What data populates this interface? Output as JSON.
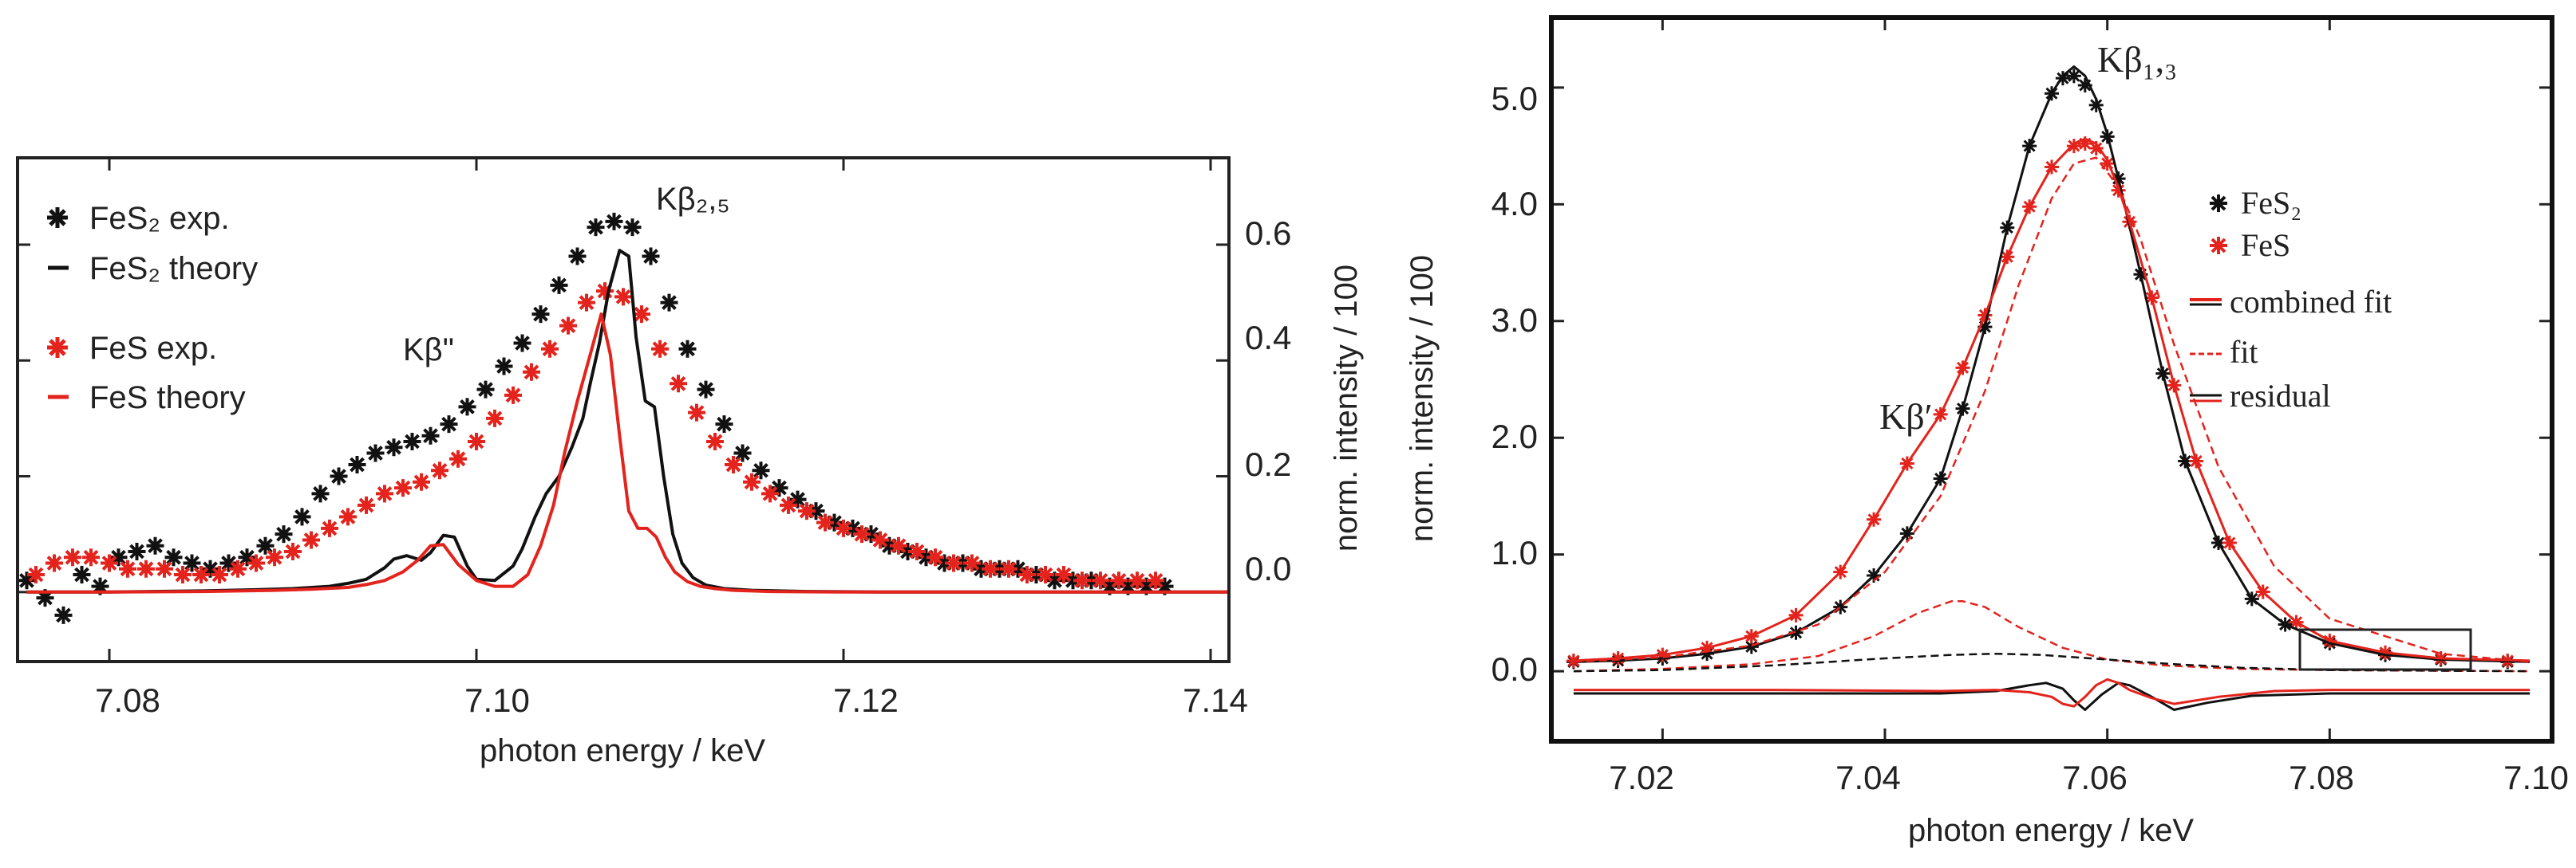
{
  "chart_data": [
    {
      "id": "left",
      "type": "scatter",
      "title": "",
      "xlabel": "photon energy / keV",
      "ylabel": "norm. intensity / 100",
      "xlim": [
        7.075,
        7.141
      ],
      "ylim": [
        -0.12,
        0.75
      ],
      "xticks": [
        7.08,
        7.1,
        7.12,
        7.14
      ],
      "xtick_labels": [
        "7.08",
        "7.10",
        "7.12",
        "7.14"
      ],
      "yticks": [
        0.0,
        0.2,
        0.4,
        0.6
      ],
      "ytick_labels": [
        "0.0",
        "0.2",
        "0.4",
        "0.6"
      ],
      "y_axis_side": "right",
      "legend_position": "top-left",
      "legend": [
        "FeS₂ exp.",
        "FeS₂ theory",
        "FeS exp.",
        "FeS theory"
      ],
      "annotations": [
        {
          "text": "Kβ\"",
          "x": 7.0965,
          "y": 0.42
        },
        {
          "text": "Kβ₂,₅",
          "x": 7.1113,
          "y": 0.69
        }
      ],
      "series": [
        {
          "name": "FeS₂ exp.",
          "style": "markers",
          "color": "#111111",
          "x": [
            7.0755,
            7.0765,
            7.0775,
            7.0785,
            7.0795,
            7.0805,
            7.0815,
            7.0825,
            7.0835,
            7.0845,
            7.0855,
            7.0865,
            7.0875,
            7.0885,
            7.0895,
            7.0905,
            7.0915,
            7.0925,
            7.0935,
            7.0945,
            7.0955,
            7.0965,
            7.0975,
            7.0985,
            7.0995,
            7.1005,
            7.1015,
            7.1025,
            7.1035,
            7.1045,
            7.1055,
            7.1065,
            7.1075,
            7.1085,
            7.1095,
            7.1105,
            7.1115,
            7.1125,
            7.1135,
            7.1145,
            7.1155,
            7.1165,
            7.1175,
            7.1185,
            7.1195,
            7.1205,
            7.1215,
            7.1225,
            7.1235,
            7.1245,
            7.1255,
            7.1265,
            7.1275,
            7.1285,
            7.1295,
            7.1305,
            7.1315,
            7.1325,
            7.1335,
            7.1345,
            7.1355,
            7.1365,
            7.1375
          ],
          "y": [
            0.02,
            -0.01,
            -0.04,
            0.03,
            0.01,
            0.06,
            0.07,
            0.08,
            0.06,
            0.05,
            0.04,
            0.05,
            0.06,
            0.08,
            0.1,
            0.13,
            0.17,
            0.2,
            0.22,
            0.24,
            0.25,
            0.26,
            0.27,
            0.29,
            0.32,
            0.35,
            0.39,
            0.43,
            0.48,
            0.53,
            0.58,
            0.63,
            0.64,
            0.63,
            0.58,
            0.5,
            0.42,
            0.35,
            0.29,
            0.24,
            0.21,
            0.18,
            0.16,
            0.14,
            0.12,
            0.11,
            0.1,
            0.08,
            0.07,
            0.06,
            0.05,
            0.05,
            0.04,
            0.04,
            0.04,
            0.03,
            0.02,
            0.02,
            0.02,
            0.01,
            0.01,
            0.01,
            0.01
          ]
        },
        {
          "name": "FeS exp.",
          "style": "markers",
          "color": "#e3231c",
          "x": [
            7.076,
            7.077,
            7.078,
            7.079,
            7.08,
            7.081,
            7.082,
            7.083,
            7.084,
            7.085,
            7.086,
            7.087,
            7.088,
            7.089,
            7.09,
            7.091,
            7.092,
            7.093,
            7.094,
            7.095,
            7.096,
            7.097,
            7.098,
            7.099,
            7.1,
            7.101,
            7.102,
            7.103,
            7.104,
            7.105,
            7.106,
            7.107,
            7.108,
            7.109,
            7.11,
            7.111,
            7.112,
            7.113,
            7.114,
            7.115,
            7.116,
            7.117,
            7.118,
            7.119,
            7.12,
            7.121,
            7.122,
            7.123,
            7.124,
            7.125,
            7.126,
            7.127,
            7.128,
            7.129,
            7.13,
            7.131,
            7.132,
            7.133,
            7.134,
            7.135,
            7.136,
            7.137
          ],
          "y": [
            0.03,
            0.05,
            0.06,
            0.06,
            0.05,
            0.04,
            0.04,
            0.04,
            0.03,
            0.03,
            0.03,
            0.04,
            0.05,
            0.06,
            0.07,
            0.09,
            0.11,
            0.13,
            0.15,
            0.17,
            0.18,
            0.19,
            0.21,
            0.23,
            0.26,
            0.3,
            0.34,
            0.38,
            0.42,
            0.46,
            0.5,
            0.52,
            0.51,
            0.48,
            0.42,
            0.36,
            0.31,
            0.26,
            0.22,
            0.19,
            0.17,
            0.15,
            0.14,
            0.12,
            0.11,
            0.1,
            0.09,
            0.08,
            0.07,
            0.06,
            0.05,
            0.05,
            0.04,
            0.04,
            0.03,
            0.03,
            0.03,
            0.02,
            0.02,
            0.02,
            0.02,
            0.02
          ]
        },
        {
          "name": "FeS₂ theory",
          "style": "line",
          "color": "#111111",
          "x": [
            7.0755,
            7.08,
            7.085,
            7.088,
            7.09,
            7.092,
            7.093,
            7.094,
            7.095,
            7.0955,
            7.0962,
            7.097,
            7.0975,
            7.0982,
            7.0988,
            7.0995,
            7.1,
            7.101,
            7.102,
            7.1025,
            7.1032,
            7.1038,
            7.1045,
            7.1052,
            7.1058,
            7.1062,
            7.1067,
            7.1072,
            7.1078,
            7.1083,
            7.1087,
            7.1092,
            7.1097,
            7.1102,
            7.1107,
            7.1112,
            7.1118,
            7.1125,
            7.1135,
            7.115,
            7.118,
            7.122,
            7.128,
            7.135,
            7.141
          ],
          "y": [
            0.0,
            0.0,
            0.002,
            0.004,
            0.006,
            0.01,
            0.015,
            0.022,
            0.042,
            0.057,
            0.063,
            0.055,
            0.068,
            0.098,
            0.095,
            0.045,
            0.022,
            0.02,
            0.045,
            0.075,
            0.13,
            0.17,
            0.2,
            0.25,
            0.3,
            0.36,
            0.43,
            0.52,
            0.59,
            0.58,
            0.44,
            0.33,
            0.32,
            0.2,
            0.1,
            0.05,
            0.025,
            0.012,
            0.006,
            0.003,
            0.001,
            0.0,
            0.0,
            0.0,
            0.0
          ]
        },
        {
          "name": "FeS theory",
          "style": "line",
          "color": "#e3231c",
          "x": [
            7.0755,
            7.08,
            7.085,
            7.089,
            7.091,
            7.093,
            7.094,
            7.095,
            7.096,
            7.0968,
            7.0975,
            7.0982,
            7.099,
            7.1,
            7.101,
            7.102,
            7.1028,
            7.1035,
            7.1042,
            7.1048,
            7.1055,
            7.1062,
            7.1068,
            7.1073,
            7.1078,
            7.1083,
            7.1088,
            7.1093,
            7.1098,
            7.1103,
            7.1108,
            7.1115,
            7.1122,
            7.113,
            7.114,
            7.116,
            7.12,
            7.125,
            7.13,
            7.141
          ],
          "y": [
            0.0,
            0.0,
            0.001,
            0.003,
            0.005,
            0.008,
            0.013,
            0.02,
            0.035,
            0.055,
            0.08,
            0.082,
            0.048,
            0.02,
            0.01,
            0.01,
            0.03,
            0.08,
            0.15,
            0.24,
            0.33,
            0.41,
            0.48,
            0.41,
            0.27,
            0.14,
            0.11,
            0.11,
            0.095,
            0.06,
            0.035,
            0.018,
            0.01,
            0.006,
            0.003,
            0.001,
            0.0,
            0.0,
            0.0,
            0.0
          ]
        }
      ]
    },
    {
      "id": "right",
      "type": "scatter",
      "title": "",
      "xlabel": "photon energy / keV",
      "ylabel": "norm. intensity / 100",
      "xlim": [
        7.01,
        7.1
      ],
      "ylim": [
        -0.6,
        5.6
      ],
      "xticks": [
        7.02,
        7.04,
        7.06,
        7.08,
        7.1
      ],
      "xtick_labels": [
        "7.02",
        "7.04",
        "7.06",
        "7.08",
        "7.10"
      ],
      "yticks": [
        0.0,
        1.0,
        2.0,
        3.0,
        4.0,
        5.0
      ],
      "ytick_labels": [
        "0.0",
        "1.0",
        "2.0",
        "3.0",
        "4.0",
        "5.0"
      ],
      "y_axis_side": "left",
      "legend_position": "right",
      "legend": [
        "FeS₂",
        "FeS",
        "combined fit",
        "fit",
        "residual"
      ],
      "annotations": [
        {
          "text": "Kβ₁,₃",
          "x": 7.0615,
          "y": 5.25
        },
        {
          "text": "Kβ′",
          "x": 7.036,
          "y": 2.05
        }
      ],
      "series": [
        {
          "name": "FeS₂",
          "style": "markers",
          "color": "#111111",
          "x": [
            7.012,
            7.016,
            7.02,
            7.024,
            7.028,
            7.032,
            7.036,
            7.039,
            7.042,
            7.045,
            7.047,
            7.049,
            7.051,
            7.053,
            7.055,
            7.056,
            7.057,
            7.058,
            7.059,
            7.06,
            7.061,
            7.063,
            7.065,
            7.067,
            7.07,
            7.073,
            7.076,
            7.08,
            7.085,
            7.09,
            7.096
          ],
          "y": [
            0.08,
            0.09,
            0.11,
            0.15,
            0.21,
            0.33,
            0.55,
            0.82,
            1.18,
            1.65,
            2.25,
            2.95,
            3.8,
            4.5,
            4.95,
            5.08,
            5.1,
            5.02,
            4.85,
            4.58,
            4.22,
            3.4,
            2.55,
            1.8,
            1.1,
            0.62,
            0.4,
            0.24,
            0.14,
            0.1,
            0.08
          ]
        },
        {
          "name": "FeS",
          "style": "markers",
          "color": "#e3231c",
          "x": [
            7.012,
            7.016,
            7.02,
            7.024,
            7.028,
            7.032,
            7.036,
            7.039,
            7.042,
            7.045,
            7.047,
            7.049,
            7.051,
            7.053,
            7.055,
            7.057,
            7.058,
            7.059,
            7.06,
            7.061,
            7.062,
            7.064,
            7.066,
            7.068,
            7.071,
            7.074,
            7.077,
            7.08,
            7.085,
            7.09,
            7.096
          ],
          "y": [
            0.09,
            0.11,
            0.14,
            0.2,
            0.3,
            0.48,
            0.85,
            1.3,
            1.78,
            2.2,
            2.6,
            3.05,
            3.55,
            3.98,
            4.32,
            4.5,
            4.52,
            4.48,
            4.35,
            4.12,
            3.85,
            3.2,
            2.45,
            1.8,
            1.1,
            0.68,
            0.42,
            0.26,
            0.16,
            0.11,
            0.09
          ]
        },
        {
          "name": "FeS₂ combined fit",
          "style": "line",
          "color": "#111111",
          "x": [
            7.012,
            7.016,
            7.02,
            7.024,
            7.028,
            7.032,
            7.036,
            7.039,
            7.042,
            7.045,
            7.047,
            7.049,
            7.051,
            7.053,
            7.055,
            7.056,
            7.057,
            7.058,
            7.059,
            7.06,
            7.061,
            7.063,
            7.065,
            7.067,
            7.07,
            7.073,
            7.076,
            7.08,
            7.085,
            7.09,
            7.098
          ],
          "y": [
            0.08,
            0.09,
            0.11,
            0.15,
            0.21,
            0.33,
            0.55,
            0.82,
            1.18,
            1.65,
            2.25,
            2.95,
            3.8,
            4.5,
            4.95,
            5.1,
            5.18,
            5.1,
            4.9,
            4.6,
            4.22,
            3.4,
            2.55,
            1.8,
            1.1,
            0.62,
            0.4,
            0.24,
            0.14,
            0.1,
            0.08
          ]
        },
        {
          "name": "FeS combined fit",
          "style": "line",
          "color": "#e3231c",
          "x": [
            7.012,
            7.016,
            7.02,
            7.024,
            7.028,
            7.032,
            7.036,
            7.039,
            7.042,
            7.045,
            7.047,
            7.049,
            7.051,
            7.053,
            7.055,
            7.057,
            7.058,
            7.059,
            7.06,
            7.061,
            7.062,
            7.064,
            7.066,
            7.068,
            7.071,
            7.074,
            7.077,
            7.08,
            7.085,
            7.09,
            7.098
          ],
          "y": [
            0.09,
            0.11,
            0.14,
            0.2,
            0.3,
            0.48,
            0.85,
            1.3,
            1.78,
            2.2,
            2.6,
            3.05,
            3.55,
            3.98,
            4.32,
            4.52,
            4.56,
            4.52,
            4.38,
            4.14,
            3.85,
            3.2,
            2.45,
            1.8,
            1.1,
            0.68,
            0.42,
            0.26,
            0.16,
            0.11,
            0.09
          ]
        },
        {
          "name": "FeS main fit",
          "style": "dashed",
          "color": "#e3231c",
          "x": [
            7.012,
            7.02,
            7.028,
            7.034,
            7.04,
            7.045,
            7.049,
            7.052,
            7.055,
            7.057,
            7.059,
            7.061,
            7.063,
            7.066,
            7.07,
            7.075,
            7.08,
            7.09,
            7.098
          ],
          "y": [
            0.08,
            0.12,
            0.22,
            0.4,
            0.85,
            1.5,
            2.4,
            3.3,
            4.05,
            4.35,
            4.4,
            4.15,
            3.7,
            2.8,
            1.75,
            0.9,
            0.45,
            0.15,
            0.08
          ]
        },
        {
          "name": "FeS Kβ′ fit",
          "style": "dashed",
          "color": "#e3231c",
          "x": [
            7.012,
            7.02,
            7.028,
            7.034,
            7.039,
            7.043,
            7.046,
            7.047,
            7.049,
            7.052,
            7.056,
            7.06,
            7.065,
            7.072,
            7.08,
            7.098
          ],
          "y": [
            0.0,
            0.02,
            0.06,
            0.13,
            0.3,
            0.5,
            0.6,
            0.6,
            0.55,
            0.38,
            0.2,
            0.1,
            0.05,
            0.02,
            0.01,
            0.0
          ]
        },
        {
          "name": "FeS₂ Kβ′ fit",
          "style": "dashed",
          "color": "#111111",
          "x": [
            7.012,
            7.02,
            7.03,
            7.04,
            7.046,
            7.05,
            7.054,
            7.06,
            7.066,
            7.072,
            7.08,
            7.098
          ],
          "y": [
            0.0,
            0.01,
            0.05,
            0.11,
            0.14,
            0.15,
            0.14,
            0.1,
            0.06,
            0.03,
            0.01,
            0.0
          ]
        },
        {
          "name": "FeS₂ residual",
          "style": "line",
          "color": "#111111",
          "x": [
            7.012,
            7.03,
            7.045,
            7.05,
            7.053,
            7.0545,
            7.056,
            7.057,
            7.058,
            7.0595,
            7.061,
            7.062,
            7.064,
            7.066,
            7.069,
            7.073,
            7.08,
            7.09,
            7.098
          ],
          "y": [
            -0.19,
            -0.19,
            -0.19,
            -0.17,
            -0.12,
            -0.1,
            -0.15,
            -0.25,
            -0.33,
            -0.2,
            -0.1,
            -0.12,
            -0.22,
            -0.33,
            -0.27,
            -0.21,
            -0.19,
            -0.19,
            -0.19
          ]
        },
        {
          "name": "FeS residual",
          "style": "line",
          "color": "#e3231c",
          "x": [
            7.012,
            7.03,
            7.045,
            7.05,
            7.053,
            7.055,
            7.056,
            7.057,
            7.058,
            7.059,
            7.06,
            7.061,
            7.062,
            7.064,
            7.066,
            7.07,
            7.075,
            7.08,
            7.09,
            7.098
          ],
          "y": [
            -0.16,
            -0.16,
            -0.17,
            -0.16,
            -0.18,
            -0.22,
            -0.28,
            -0.3,
            -0.22,
            -0.12,
            -0.07,
            -0.1,
            -0.16,
            -0.23,
            -0.28,
            -0.22,
            -0.17,
            -0.16,
            -0.16,
            -0.16
          ]
        }
      ]
    }
  ]
}
